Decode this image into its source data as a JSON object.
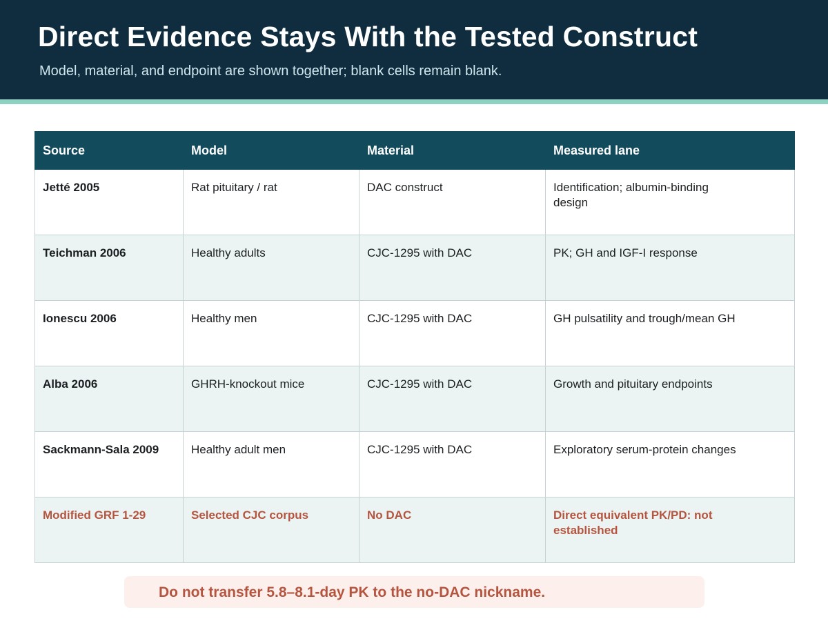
{
  "header": {
    "title": "Direct Evidence Stays With the Tested Construct",
    "subtitle": "Model, material, and endpoint are shown together; blank cells remain blank."
  },
  "table": {
    "columns": [
      "Source",
      "Model",
      "Material",
      "Measured lane"
    ],
    "rows": [
      {
        "source": "Jetté 2005",
        "model": "Rat pituitary / rat",
        "material": "DAC construct",
        "lane": "Identification; albumin-binding design"
      },
      {
        "source": "Teichman 2006",
        "model": "Healthy adults",
        "material": "CJC-1295 with DAC",
        "lane": "PK; GH and IGF-I response"
      },
      {
        "source": "Ionescu 2006",
        "model": "Healthy men",
        "material": "CJC-1295 with DAC",
        "lane": "GH pulsatility and trough/mean GH"
      },
      {
        "source": "Alba 2006",
        "model": "GHRH-knockout mice",
        "material": "CJC-1295 with DAC",
        "lane": "Growth and pituitary endpoints"
      },
      {
        "source": "Sackmann-Sala 2009",
        "model": "Healthy adult men",
        "material": "CJC-1295 with DAC",
        "lane": "Exploratory serum-protein changes"
      },
      {
        "source": "Modified GRF 1-29",
        "model": "Selected CJC corpus",
        "material": "No DAC",
        "lane": "Direct equivalent PK/PD: not established"
      }
    ]
  },
  "callout": {
    "text": "Do not transfer 5.8–8.1-day PK to the no-DAC nickname."
  },
  "colors": {
    "header_bg": "#0f2d3e",
    "accent_rule": "#8fd1c0",
    "table_header_bg": "#124b5c",
    "row_alt_bg": "#ebf4f3",
    "warning_text": "#b5553f",
    "callout_bg": "#fdf0ec"
  }
}
